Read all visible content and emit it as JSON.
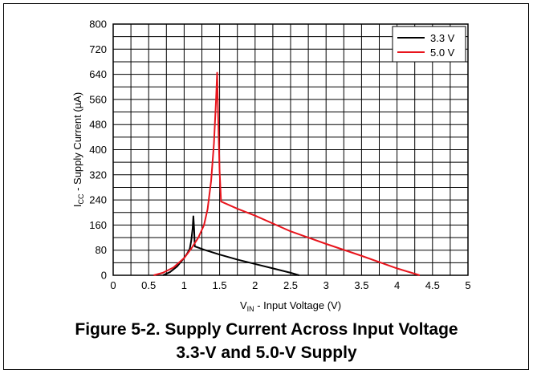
{
  "figure": {
    "caption_line1": "Figure 5-2. Supply Current Across Input Voltage",
    "caption_line2": "3.3-V and 5.0-V Supply"
  },
  "chart_data": {
    "type": "line",
    "xlabel_main": "V",
    "xlabel_sub": "IN",
    "xlabel_rest": " - Input Voltage (V)",
    "ylabel_main": "I",
    "ylabel_sub": "CC",
    "ylabel_rest": " - Supply Current (µA)",
    "xlim": [
      0,
      5
    ],
    "ylim": [
      0,
      800
    ],
    "x_ticks": [
      0,
      0.5,
      1,
      1.5,
      2,
      2.5,
      3,
      3.5,
      4,
      4.5,
      5
    ],
    "x_tick_labels": [
      "0",
      "0.5",
      "1",
      "1.5",
      "2",
      "2.5",
      "3",
      "3.5",
      "4",
      "4.5",
      "5"
    ],
    "y_ticks": [
      0,
      80,
      160,
      240,
      320,
      400,
      480,
      560,
      640,
      720,
      800
    ],
    "y_tick_labels": [
      "0",
      "80",
      "160",
      "240",
      "320",
      "400",
      "480",
      "560",
      "640",
      "720",
      "800"
    ],
    "grid": true,
    "legend_position": "top-right",
    "series": [
      {
        "name": "3.3 V",
        "color": "#000000",
        "points": [
          [
            0.7,
            0
          ],
          [
            0.8,
            10
          ],
          [
            0.9,
            28
          ],
          [
            1.0,
            55
          ],
          [
            1.05,
            72
          ],
          [
            1.08,
            85
          ],
          [
            1.1,
            110
          ],
          [
            1.12,
            150
          ],
          [
            1.13,
            188
          ],
          [
            1.14,
            150
          ],
          [
            1.15,
            92
          ],
          [
            1.3,
            80
          ],
          [
            1.5,
            66
          ],
          [
            1.75,
            50
          ],
          [
            2.0,
            36
          ],
          [
            2.25,
            22
          ],
          [
            2.5,
            8
          ],
          [
            2.62,
            0
          ]
        ]
      },
      {
        "name": "5.0 V",
        "color": "#e8141c",
        "points": [
          [
            0.57,
            0
          ],
          [
            0.7,
            8
          ],
          [
            0.85,
            25
          ],
          [
            1.0,
            55
          ],
          [
            1.1,
            85
          ],
          [
            1.2,
            120
          ],
          [
            1.28,
            160
          ],
          [
            1.33,
            210
          ],
          [
            1.38,
            300
          ],
          [
            1.42,
            420
          ],
          [
            1.45,
            560
          ],
          [
            1.465,
            645
          ],
          [
            1.48,
            500
          ],
          [
            1.5,
            330
          ],
          [
            1.52,
            235
          ],
          [
            1.75,
            212
          ],
          [
            2.0,
            190
          ],
          [
            2.5,
            140
          ],
          [
            3.0,
            100
          ],
          [
            3.5,
            62
          ],
          [
            4.0,
            22
          ],
          [
            4.32,
            0
          ]
        ]
      }
    ]
  }
}
